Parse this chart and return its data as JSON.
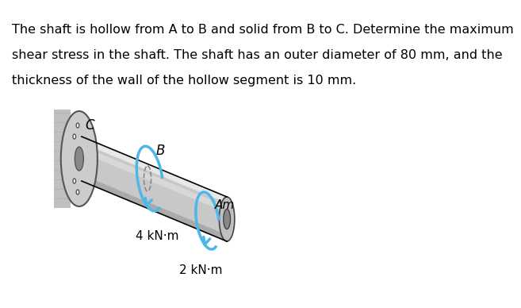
{
  "text_line1": "The shaft is hollow from A to B and solid from B to C. Determine the maximum",
  "text_line2": "shear stress in the shaft. The shaft has an outer diameter of 80 mm, and the",
  "text_line3": "thickness of the wall of the hollow segment is 10 mm.",
  "label_B": "B",
  "label_C": "C",
  "label_Am": "Am",
  "label_4kNm": "4 kN·m",
  "label_2kNm": "2 kN·m",
  "bg_color": "#ffffff",
  "shaft_color_light": "#d0d0d0",
  "shaft_color_mid": "#b0b0b0",
  "shaft_color_dark": "#888888",
  "arrow_color": "#4db8e8",
  "text_fontsize": 11.5
}
